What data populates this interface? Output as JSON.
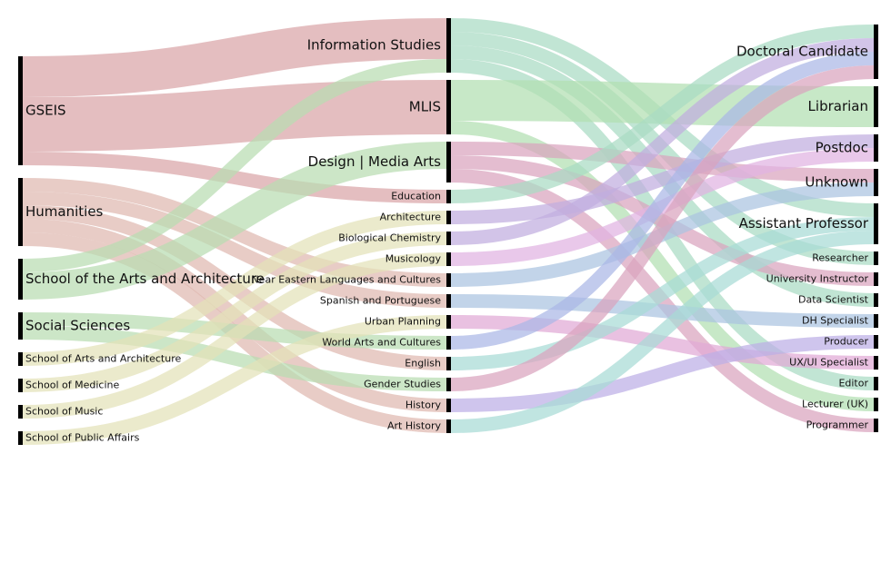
{
  "chart_data": {
    "type": "sankey",
    "colors": {
      "GSEIS": "#d9a5a7",
      "Humanities": "#dfb9b0",
      "School of the Arts and Architecture": "#b9ddb2",
      "Social Sciences": "#b9ddb2",
      "School of Arts and Architecture": "#e3e2b8",
      "School of Medicine": "#e3e2b8",
      "School of Music": "#e3e2b8",
      "School of Public Affairs": "#e3e2b8",
      "Information Studies": "#a9dbc4",
      "MLIS": "#b2dfb1",
      "Design | Media Arts": "#d9a4be",
      "Education": "#a9dbc4",
      "Architecture": "#c1addf",
      "Biological Chemistry": "#c1addf",
      "Musicology": "#e1b3e2",
      "Near Eastern Languages and Cultures": "#aac4e0",
      "Spanish and Portuguese": "#aac4e0",
      "Urban Planning": "#e1a9d6",
      "World Arts and Cultures": "#aab7e6",
      "English": "#a8dbd5",
      "Gender Studies": "#d9a4be",
      "History": "#bcaee6",
      "Art History": "#a8dbd5"
    },
    "nodes": [
      {
        "name": "GSEIS",
        "col": 0
      },
      {
        "name": "Humanities",
        "col": 0
      },
      {
        "name": "School of the Arts and Architecture",
        "col": 0
      },
      {
        "name": "Social Sciences",
        "col": 0
      },
      {
        "name": "School of Arts and Architecture",
        "col": 0
      },
      {
        "name": "School of Medicine",
        "col": 0
      },
      {
        "name": "School of Music",
        "col": 0
      },
      {
        "name": "School of Public Affairs",
        "col": 0
      },
      {
        "name": "Information Studies",
        "col": 1
      },
      {
        "name": "MLIS",
        "col": 1
      },
      {
        "name": "Design | Media Arts",
        "col": 1
      },
      {
        "name": "Education",
        "col": 1
      },
      {
        "name": "Architecture",
        "col": 1
      },
      {
        "name": "Biological Chemistry",
        "col": 1
      },
      {
        "name": "Musicology",
        "col": 1
      },
      {
        "name": "Near Eastern Languages and Cultures",
        "col": 1
      },
      {
        "name": "Spanish and Portuguese",
        "col": 1
      },
      {
        "name": "Urban Planning",
        "col": 1
      },
      {
        "name": "World Arts and Cultures",
        "col": 1
      },
      {
        "name": "English",
        "col": 1
      },
      {
        "name": "Gender Studies",
        "col": 1
      },
      {
        "name": "History",
        "col": 1
      },
      {
        "name": "Art History",
        "col": 1
      },
      {
        "name": "Doctoral Candidate",
        "col": 2
      },
      {
        "name": "Librarian",
        "col": 2
      },
      {
        "name": "Postdoc",
        "col": 2
      },
      {
        "name": "Unknown",
        "col": 2
      },
      {
        "name": "Assistant Professor",
        "col": 2
      },
      {
        "name": "Researcher",
        "col": 2
      },
      {
        "name": "University Instructor",
        "col": 2
      },
      {
        "name": "Data Scientist",
        "col": 2
      },
      {
        "name": "DH Specialist",
        "col": 2
      },
      {
        "name": "Producer",
        "col": 2
      },
      {
        "name": "UX/UI Specialist",
        "col": 2
      },
      {
        "name": "Editor",
        "col": 2
      },
      {
        "name": "Lecturer (UK)",
        "col": 2
      },
      {
        "name": "Programmer",
        "col": 2
      }
    ],
    "links": [
      {
        "source": "GSEIS",
        "target": "Information Studies",
        "value": 3
      },
      {
        "source": "GSEIS",
        "target": "MLIS",
        "value": 4
      },
      {
        "source": "GSEIS",
        "target": "Education",
        "value": 1
      },
      {
        "source": "Humanities",
        "target": "Near Eastern Languages and Cultures",
        "value": 1
      },
      {
        "source": "Humanities",
        "target": "Spanish and Portuguese",
        "value": 1
      },
      {
        "source": "Humanities",
        "target": "English",
        "value": 1
      },
      {
        "source": "Humanities",
        "target": "History",
        "value": 1
      },
      {
        "source": "Humanities",
        "target": "Art History",
        "value": 1
      },
      {
        "source": "School of the Arts and Architecture",
        "target": "Information Studies",
        "value": 1
      },
      {
        "source": "School of the Arts and Architecture",
        "target": "Design | Media Arts",
        "value": 2
      },
      {
        "source": "Social Sciences",
        "target": "World Arts and Cultures",
        "value": 1
      },
      {
        "source": "Social Sciences",
        "target": "Gender Studies",
        "value": 1
      },
      {
        "source": "School of Arts and Architecture",
        "target": "Architecture",
        "value": 1
      },
      {
        "source": "School of Medicine",
        "target": "Biological Chemistry",
        "value": 1
      },
      {
        "source": "School of Music",
        "target": "Musicology",
        "value": 1
      },
      {
        "source": "School of Public Affairs",
        "target": "Urban Planning",
        "value": 1
      },
      {
        "source": "Information Studies",
        "target": "Researcher",
        "value": 1
      },
      {
        "source": "Information Studies",
        "target": "Assistant Professor",
        "value": 1
      },
      {
        "source": "Information Studies",
        "target": "Data Scientist",
        "value": 1
      },
      {
        "source": "Information Studies",
        "target": "Editor",
        "value": 1
      },
      {
        "source": "MLIS",
        "target": "Librarian",
        "value": 3
      },
      {
        "source": "MLIS",
        "target": "Lecturer (UK)",
        "value": 1
      },
      {
        "source": "Design | Media Arts",
        "target": "Unknown",
        "value": 1
      },
      {
        "source": "Design | Media Arts",
        "target": "University Instructor",
        "value": 1
      },
      {
        "source": "Design | Media Arts",
        "target": "Programmer",
        "value": 1
      },
      {
        "source": "Education",
        "target": "Doctoral Candidate",
        "value": 1
      },
      {
        "source": "Architecture",
        "target": "Postdoc",
        "value": 1
      },
      {
        "source": "Biological Chemistry",
        "target": "Doctoral Candidate",
        "value": 1
      },
      {
        "source": "Musicology",
        "target": "Postdoc",
        "value": 1
      },
      {
        "source": "Near Eastern Languages and Cultures",
        "target": "Unknown",
        "value": 1
      },
      {
        "source": "Spanish and Portuguese",
        "target": "DH Specialist",
        "value": 1
      },
      {
        "source": "Urban Planning",
        "target": "UX/UI Specialist",
        "value": 1
      },
      {
        "source": "World Arts and Cultures",
        "target": "Doctoral Candidate",
        "value": 1
      },
      {
        "source": "English",
        "target": "Assistant Professor",
        "value": 1
      },
      {
        "source": "Gender Studies",
        "target": "Doctoral Candidate",
        "value": 1
      },
      {
        "source": "History",
        "target": "Producer",
        "value": 1
      },
      {
        "source": "Art History",
        "target": "Assistant Professor",
        "value": 1
      }
    ]
  }
}
